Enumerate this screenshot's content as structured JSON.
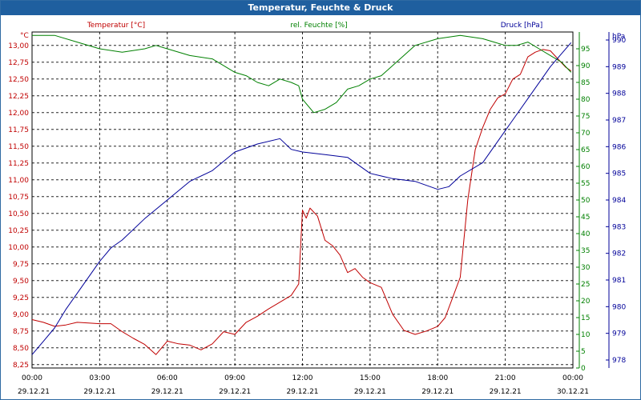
{
  "window": {
    "title": "Temperatur, Feuchte & Druck"
  },
  "colors": {
    "temperature": "#c00000",
    "humidity": "#008000",
    "pressure": "#000099",
    "grid": "#000000",
    "title_bar": "#1f5f9f"
  },
  "chart_data": {
    "type": "line",
    "grid": true,
    "x": {
      "range": [
        "2021-12-29 00:00",
        "2021-12-30 00:00"
      ],
      "tick_labels": [
        "00:00",
        "03:00",
        "06:00",
        "09:00",
        "12:00",
        "15:00",
        "18:00",
        "21:00",
        "00:00"
      ],
      "date_labels": [
        "29.12.21",
        "29.12.21",
        "29.12.21",
        "29.12.21",
        "29.12.21",
        "29.12.21",
        "29.12.21",
        "29.12.21",
        "30.12.21"
      ]
    },
    "axes": [
      {
        "id": "temperature",
        "side": "left",
        "label": "Temperatur [°C]",
        "unit": "°C",
        "range": [
          8.2,
          13.2
        ],
        "ticks": [
          "8,25",
          "8,50",
          "8,75",
          "9,00",
          "9,25",
          "9,50",
          "9,75",
          "10,00",
          "10,25",
          "10,50",
          "10,75",
          "11,00",
          "11,25",
          "11,50",
          "11,75",
          "12,00",
          "12,25",
          "12,50",
          "12,75",
          "13,00"
        ]
      },
      {
        "id": "humidity",
        "side": "right-inner",
        "label": "rel. Feuchte [%]",
        "unit": "%",
        "range": [
          0,
          100
        ],
        "ticks": [
          "0",
          "5",
          "10",
          "15",
          "20",
          "25",
          "30",
          "35",
          "40",
          "45",
          "50",
          "55",
          "60",
          "65",
          "70",
          "75",
          "80",
          "85",
          "90",
          "95"
        ]
      },
      {
        "id": "pressure",
        "side": "right-outer",
        "label": "Druck [hPa]",
        "unit": "hPa",
        "range": [
          977.7,
          990.3
        ],
        "ticks": [
          "978",
          "979",
          "980",
          "981",
          "982",
          "983",
          "984",
          "985",
          "986",
          "987",
          "988",
          "989",
          "990"
        ]
      }
    ],
    "series": [
      {
        "name": "Temperatur [°C]",
        "axis": "temperature",
        "x": [
          "2021-12-29 00:00",
          "2021-12-29 00:30",
          "2021-12-29 01:00",
          "2021-12-29 01:30",
          "2021-12-29 02:00",
          "2021-12-29 02:30",
          "2021-12-29 03:00",
          "2021-12-29 03:30",
          "2021-12-29 04:00",
          "2021-12-29 04:30",
          "2021-12-29 05:00",
          "2021-12-29 05:30",
          "2021-12-29 06:00",
          "2021-12-29 06:30",
          "2021-12-29 07:00",
          "2021-12-29 07:30",
          "2021-12-29 08:00",
          "2021-12-29 08:30",
          "2021-12-29 09:00",
          "2021-12-29 09:30",
          "2021-12-29 10:00",
          "2021-12-29 10:30",
          "2021-12-29 11:00",
          "2021-12-29 11:30",
          "2021-12-29 11:50",
          "2021-12-29 12:00",
          "2021-12-29 12:10",
          "2021-12-29 12:20",
          "2021-12-29 12:40",
          "2021-12-29 13:00",
          "2021-12-29 13:20",
          "2021-12-29 13:40",
          "2021-12-29 14:00",
          "2021-12-29 14:20",
          "2021-12-29 14:40",
          "2021-12-29 15:00",
          "2021-12-29 15:30",
          "2021-12-29 16:00",
          "2021-12-29 16:30",
          "2021-12-29 17:00",
          "2021-12-29 17:30",
          "2021-12-29 18:00",
          "2021-12-29 18:20",
          "2021-12-29 18:40",
          "2021-12-29 19:00",
          "2021-12-29 19:20",
          "2021-12-29 19:40",
          "2021-12-29 20:00",
          "2021-12-29 20:20",
          "2021-12-29 20:40",
          "2021-12-29 21:00",
          "2021-12-29 21:20",
          "2021-12-29 21:40",
          "2021-12-29 22:00",
          "2021-12-29 22:20",
          "2021-12-29 22:40",
          "2021-12-29 23:00",
          "2021-12-29 23:20",
          "2021-12-29 23:40",
          "2021-12-29 23:55"
        ],
        "values": [
          8.92,
          8.88,
          8.82,
          8.84,
          8.88,
          8.87,
          8.86,
          8.86,
          8.74,
          8.64,
          8.55,
          8.4,
          8.6,
          8.56,
          8.54,
          8.47,
          8.56,
          8.74,
          8.7,
          8.88,
          8.97,
          9.08,
          9.18,
          9.28,
          9.45,
          10.55,
          10.43,
          10.58,
          10.46,
          10.1,
          10.02,
          9.88,
          9.62,
          9.68,
          9.55,
          9.47,
          9.4,
          9.0,
          8.76,
          8.7,
          8.75,
          8.82,
          8.95,
          9.25,
          9.55,
          10.7,
          11.45,
          11.78,
          12.05,
          12.22,
          12.28,
          12.5,
          12.57,
          12.83,
          12.9,
          12.94,
          12.92,
          12.8,
          12.68,
          12.62
        ]
      },
      {
        "name": "rel. Feuchte [%]",
        "axis": "humidity",
        "x": [
          "2021-12-29 00:00",
          "2021-12-29 01:00",
          "2021-12-29 02:00",
          "2021-12-29 03:00",
          "2021-12-29 04:00",
          "2021-12-29 05:00",
          "2021-12-29 05:30",
          "2021-12-29 06:00",
          "2021-12-29 07:00",
          "2021-12-29 08:00",
          "2021-12-29 09:00",
          "2021-12-29 09:30",
          "2021-12-29 10:00",
          "2021-12-29 10:30",
          "2021-12-29 11:00",
          "2021-12-29 11:30",
          "2021-12-29 11:50",
          "2021-12-29 12:00",
          "2021-12-29 12:30",
          "2021-12-29 13:00",
          "2021-12-29 13:30",
          "2021-12-29 14:00",
          "2021-12-29 14:30",
          "2021-12-29 15:00",
          "2021-12-29 15:30",
          "2021-12-29 16:00",
          "2021-12-29 17:00",
          "2021-12-29 18:00",
          "2021-12-29 19:00",
          "2021-12-29 20:00",
          "2021-12-29 20:30",
          "2021-12-29 21:00",
          "2021-12-29 21:30",
          "2021-12-29 22:00",
          "2021-12-29 22:30",
          "2021-12-29 23:00",
          "2021-12-29 23:30",
          "2021-12-29 23:55"
        ],
        "values": [
          99,
          99,
          97,
          95,
          94,
          95,
          96,
          95,
          93,
          92,
          88,
          87,
          85,
          84,
          86,
          85,
          84,
          80,
          76,
          77,
          79,
          83,
          84,
          86,
          87,
          90,
          96,
          98,
          99,
          98,
          97,
          96,
          96,
          97,
          95,
          93,
          91,
          88
        ]
      },
      {
        "name": "Druck [hPa]",
        "axis": "pressure",
        "x": [
          "2021-12-29 00:00",
          "2021-12-29 00:30",
          "2021-12-29 01:00",
          "2021-12-29 01:30",
          "2021-12-29 02:00",
          "2021-12-29 03:00",
          "2021-12-29 03:30",
          "2021-12-29 04:00",
          "2021-12-29 05:00",
          "2021-12-29 06:00",
          "2021-12-29 07:00",
          "2021-12-29 08:00",
          "2021-12-29 09:00",
          "2021-12-29 10:00",
          "2021-12-29 11:00",
          "2021-12-29 11:30",
          "2021-12-29 12:00",
          "2021-12-29 13:00",
          "2021-12-29 14:00",
          "2021-12-29 15:00",
          "2021-12-29 15:30",
          "2021-12-29 16:00",
          "2021-12-29 17:00",
          "2021-12-29 18:00",
          "2021-12-29 18:30",
          "2021-12-29 19:00",
          "2021-12-29 20:00",
          "2021-12-29 21:00",
          "2021-12-29 22:00",
          "2021-12-29 23:00",
          "2021-12-29 23:55"
        ],
        "values": [
          978.2,
          978.7,
          979.2,
          979.9,
          980.5,
          981.7,
          982.2,
          982.5,
          983.3,
          984.0,
          984.7,
          985.1,
          985.8,
          986.1,
          986.3,
          985.9,
          985.8,
          985.7,
          985.6,
          985.0,
          984.9,
          984.8,
          984.7,
          984.4,
          984.5,
          984.9,
          985.4,
          986.6,
          987.8,
          989.0,
          989.9
        ]
      }
    ]
  }
}
